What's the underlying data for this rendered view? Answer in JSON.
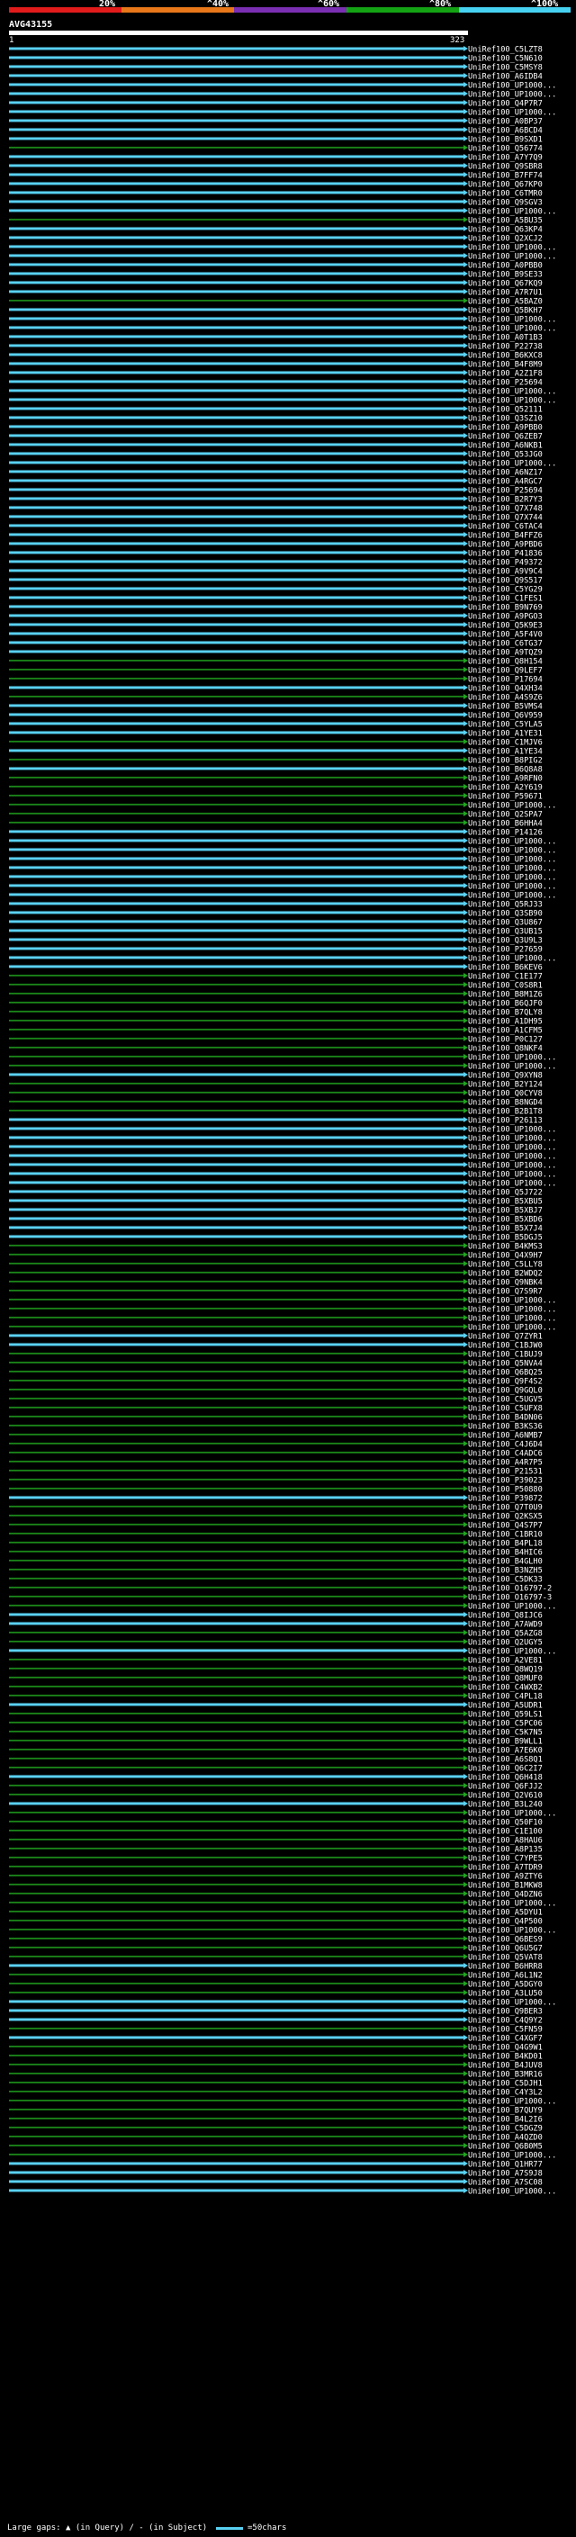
{
  "colors": {
    "red": "#e21b1b",
    "orange": "#e8781a",
    "purple": "#7b2fb3",
    "green": "#14a314",
    "cyan": "#47d2f2",
    "hit_green": "#1fa31f",
    "hit_cyan": "#59d1f2",
    "gap": "#ffffff"
  },
  "scale": {
    "ticks": [
      "20%",
      "^40%",
      "^60%",
      "^80%",
      "^100%"
    ]
  },
  "query": {
    "name": "AVG43155",
    "start": "1",
    "end": "323"
  },
  "footer": {
    "gaps_label": "Large gaps: ▲ (in Query) / - (in Subject)",
    "legend_label": "=50chars"
  },
  "hits": [
    {
      "id": "UniRef100_C5LZT8",
      "color": "cyan"
    },
    {
      "id": "UniRef100_C5N610",
      "color": "cyan"
    },
    {
      "id": "UniRef100_C5MSY8",
      "color": "cyan"
    },
    {
      "id": "UniRef100_A6IDB4",
      "color": "cyan"
    },
    {
      "id": "UniRef100_UP1000...",
      "color": "cyan"
    },
    {
      "id": "UniRef100_UP1000...",
      "color": "cyan"
    },
    {
      "id": "UniRef100_Q4P7R7",
      "color": "cyan"
    },
    {
      "id": "UniRef100_UP1000...",
      "color": "cyan"
    },
    {
      "id": "UniRef100_A0BP37",
      "color": "cyan"
    },
    {
      "id": "UniRef100_A6BCD4",
      "color": "cyan"
    },
    {
      "id": "UniRef100_B9SXD1",
      "color": "cyan"
    },
    {
      "id": "UniRef100_Q56774",
      "color": "green"
    },
    {
      "id": "UniRef100_A7Y7Q9",
      "color": "cyan"
    },
    {
      "id": "UniRef100_Q9SBR8",
      "color": "cyan"
    },
    {
      "id": "UniRef100_B7FF74",
      "color": "cyan"
    },
    {
      "id": "UniRef100_Q67KP0",
      "color": "cyan"
    },
    {
      "id": "UniRef100_C6TMR0",
      "color": "cyan"
    },
    {
      "id": "UniRef100_Q9SGV3",
      "color": "cyan"
    },
    {
      "id": "UniRef100_UP1000...",
      "color": "cyan"
    },
    {
      "id": "UniRef100_A5BU35",
      "color": "green"
    },
    {
      "id": "UniRef100_Q63KP4",
      "color": "cyan"
    },
    {
      "id": "UniRef100_Q2XCJ2",
      "color": "cyan"
    },
    {
      "id": "UniRef100_UP1000...",
      "color": "cyan"
    },
    {
      "id": "UniRef100_UP1000...",
      "color": "cyan"
    },
    {
      "id": "UniRef100_A0PBB0",
      "color": "cyan"
    },
    {
      "id": "UniRef100_B9SE33",
      "color": "cyan"
    },
    {
      "id": "UniRef100_Q67KQ9",
      "color": "cyan"
    },
    {
      "id": "UniRef100_A7R7U1",
      "color": "cyan"
    },
    {
      "id": "UniRef100_A5BAZ0",
      "color": "green"
    },
    {
      "id": "UniRef100_Q5BKH7",
      "color": "cyan"
    },
    {
      "id": "UniRef100_UP1000...",
      "color": "cyan"
    },
    {
      "id": "UniRef100_UP1000...",
      "color": "cyan"
    },
    {
      "id": "UniRef100_A0T1B3",
      "color": "cyan"
    },
    {
      "id": "UniRef100_P22738",
      "color": "cyan"
    },
    {
      "id": "UniRef100_B6KXC8",
      "color": "cyan"
    },
    {
      "id": "UniRef100_B4F8M9",
      "color": "cyan"
    },
    {
      "id": "UniRef100_A2Z1F8",
      "color": "cyan"
    },
    {
      "id": "UniRef100_P25694",
      "color": "cyan"
    },
    {
      "id": "UniRef100_UP1000...",
      "color": "cyan"
    },
    {
      "id": "UniRef100_UP1000...",
      "color": "cyan"
    },
    {
      "id": "UniRef100_Q52111",
      "color": "cyan"
    },
    {
      "id": "UniRef100_Q3SZ10",
      "color": "cyan"
    },
    {
      "id": "UniRef100_A9PBB0",
      "color": "cyan"
    },
    {
      "id": "UniRef100_Q6ZEB7",
      "color": "cyan"
    },
    {
      "id": "UniRef100_A6NKB1",
      "color": "cyan"
    },
    {
      "id": "UniRef100_Q53JG0",
      "color": "cyan"
    },
    {
      "id": "UniRef100_UP1000...",
      "color": "cyan"
    },
    {
      "id": "UniRef100_A6NZ17",
      "color": "cyan"
    },
    {
      "id": "UniRef100_A4RGC7",
      "color": "cyan"
    },
    {
      "id": "UniRef100_P25694",
      "color": "cyan"
    },
    {
      "id": "UniRef100_B2R7Y3",
      "color": "cyan"
    },
    {
      "id": "UniRef100_Q7X748",
      "color": "cyan"
    },
    {
      "id": "UniRef100_Q7X744",
      "color": "cyan"
    },
    {
      "id": "UniRef100_C6TAC4",
      "color": "cyan"
    },
    {
      "id": "UniRef100_B4FFZ6",
      "color": "cyan"
    },
    {
      "id": "UniRef100_A9PBD6",
      "color": "cyan"
    },
    {
      "id": "UniRef100_P41836",
      "color": "cyan"
    },
    {
      "id": "UniRef100_P49372",
      "color": "cyan"
    },
    {
      "id": "UniRef100_A9V9C4",
      "color": "cyan"
    },
    {
      "id": "UniRef100_Q9S517",
      "color": "cyan"
    },
    {
      "id": "UniRef100_C5YG29",
      "color": "cyan"
    },
    {
      "id": "UniRef100_C1FES1",
      "color": "cyan"
    },
    {
      "id": "UniRef100_B9N769",
      "color": "cyan"
    },
    {
      "id": "UniRef100_A9PGO3",
      "color": "cyan"
    },
    {
      "id": "UniRef100_Q5K9E3",
      "color": "cyan"
    },
    {
      "id": "UniRef100_A5F4V0",
      "color": "cyan"
    },
    {
      "id": "UniRef100_C6TG37",
      "color": "cyan"
    },
    {
      "id": "UniRef100_A9TQZ9",
      "color": "cyan"
    },
    {
      "id": "UniRef100_Q8H154",
      "color": "green"
    },
    {
      "id": "UniRef100_Q9LEF7",
      "color": "green"
    },
    {
      "id": "UniRef100_P17694",
      "color": "green"
    },
    {
      "id": "UniRef100_Q4XH34",
      "color": "cyan"
    },
    {
      "id": "UniRef100_A4S9Z6",
      "color": "green"
    },
    {
      "id": "UniRef100_B5VMS4",
      "color": "cyan"
    },
    {
      "id": "UniRef100_Q6V959",
      "color": "cyan"
    },
    {
      "id": "UniRef100_C5YLA5",
      "color": "cyan"
    },
    {
      "id": "UniRef100_A1YE31",
      "color": "cyan"
    },
    {
      "id": "UniRef100_C1MJV6",
      "color": "green"
    },
    {
      "id": "UniRef100_A1YE34",
      "color": "cyan"
    },
    {
      "id": "UniRef100_B8PIG2",
      "color": "green"
    },
    {
      "id": "UniRef100_B6Q8A8",
      "color": "cyan"
    },
    {
      "id": "UniRef100_A9RFN0",
      "color": "green"
    },
    {
      "id": "UniRef100_A2Y619",
      "color": "green"
    },
    {
      "id": "UniRef100_P59671",
      "color": "green"
    },
    {
      "id": "UniRef100_UP1000...",
      "color": "green"
    },
    {
      "id": "UniRef100_Q2SPA7",
      "color": "green"
    },
    {
      "id": "UniRef100_B6HHA4",
      "color": "green"
    },
    {
      "id": "UniRef100_P14126",
      "color": "cyan"
    },
    {
      "id": "UniRef100_UP1000...",
      "color": "cyan"
    },
    {
      "id": "UniRef100_UP1000...",
      "color": "cyan"
    },
    {
      "id": "UniRef100_UP1000...",
      "color": "cyan"
    },
    {
      "id": "UniRef100_UP1000...",
      "color": "cyan"
    },
    {
      "id": "UniRef100_UP1000...",
      "color": "cyan"
    },
    {
      "id": "UniRef100_UP1000...",
      "color": "cyan"
    },
    {
      "id": "UniRef100_UP1000...",
      "color": "cyan"
    },
    {
      "id": "UniRef100_Q5RJ33",
      "color": "cyan"
    },
    {
      "id": "UniRef100_Q3SB90",
      "color": "cyan"
    },
    {
      "id": "UniRef100_Q3U867",
      "color": "cyan"
    },
    {
      "id": "UniRef100_Q3UB15",
      "color": "cyan"
    },
    {
      "id": "UniRef100_Q3U9L3",
      "color": "cyan"
    },
    {
      "id": "UniRef100_P27659",
      "color": "cyan"
    },
    {
      "id": "UniRef100_UP1000...",
      "color": "cyan"
    },
    {
      "id": "UniRef100_B6KEV6",
      "color": "cyan"
    },
    {
      "id": "UniRef100_C1E177",
      "color": "green"
    },
    {
      "id": "UniRef100_C0S8R1",
      "color": "green"
    },
    {
      "id": "UniRef100_B8M1Z6",
      "color": "green"
    },
    {
      "id": "UniRef100_B6QJF0",
      "color": "green"
    },
    {
      "id": "UniRef100_B7QLY8",
      "color": "green"
    },
    {
      "id": "UniRef100_A1DH95",
      "color": "green"
    },
    {
      "id": "UniRef100_A1CFM5",
      "color": "green"
    },
    {
      "id": "UniRef100_P0C127",
      "color": "green"
    },
    {
      "id": "UniRef100_Q8NKF4",
      "color": "green"
    },
    {
      "id": "UniRef100_UP1000...",
      "color": "green"
    },
    {
      "id": "UniRef100_UP1000...",
      "color": "green"
    },
    {
      "id": "UniRef100_Q9XYN8",
      "color": "cyan"
    },
    {
      "id": "UniRef100_B2Y124",
      "color": "green"
    },
    {
      "id": "UniRef100_Q0CYV8",
      "color": "green"
    },
    {
      "id": "UniRef100_B8NGD4",
      "color": "green"
    },
    {
      "id": "UniRef100_B2B1T8",
      "color": "green"
    },
    {
      "id": "UniRef100_P26113",
      "color": "cyan"
    },
    {
      "id": "UniRef100_UP1000...",
      "color": "cyan"
    },
    {
      "id": "UniRef100_UP1000...",
      "color": "cyan"
    },
    {
      "id": "UniRef100_UP1000...",
      "color": "cyan"
    },
    {
      "id": "UniRef100_UP1000...",
      "color": "cyan"
    },
    {
      "id": "UniRef100_UP1000...",
      "color": "cyan"
    },
    {
      "id": "UniRef100_UP1000...",
      "color": "cyan"
    },
    {
      "id": "UniRef100_UP1000...",
      "color": "cyan"
    },
    {
      "id": "UniRef100_Q5J722",
      "color": "cyan"
    },
    {
      "id": "UniRef100_B5XBU5",
      "color": "cyan"
    },
    {
      "id": "UniRef100_B5XBJ7",
      "color": "cyan"
    },
    {
      "id": "UniRef100_B5XBD6",
      "color": "cyan"
    },
    {
      "id": "UniRef100_B5X7J4",
      "color": "cyan"
    },
    {
      "id": "UniRef100_B5DGJ5",
      "color": "cyan"
    },
    {
      "id": "UniRef100_B4KMS3",
      "color": "green"
    },
    {
      "id": "UniRef100_Q4X9H7",
      "color": "green"
    },
    {
      "id": "UniRef100_C5LLY8",
      "color": "green"
    },
    {
      "id": "UniRef100_B2WDQ2",
      "color": "green"
    },
    {
      "id": "UniRef100_Q9NBK4",
      "color": "green"
    },
    {
      "id": "UniRef100_Q7S9R7",
      "color": "green"
    },
    {
      "id": "UniRef100_UP1000...",
      "color": "green"
    },
    {
      "id": "UniRef100_UP1000...",
      "color": "green"
    },
    {
      "id": "UniRef100_UP1000...",
      "color": "green"
    },
    {
      "id": "UniRef100_UP1000...",
      "color": "green"
    },
    {
      "id": "UniRef100_Q7ZYR1",
      "color": "cyan"
    },
    {
      "id": "UniRef100_C1BJW0",
      "color": "cyan"
    },
    {
      "id": "UniRef100_C1BUJ9",
      "color": "green"
    },
    {
      "id": "UniRef100_Q5NVA4",
      "color": "green"
    },
    {
      "id": "UniRef100_Q6BQ25",
      "color": "green"
    },
    {
      "id": "UniRef100_Q9F4S2",
      "color": "green"
    },
    {
      "id": "UniRef100_Q9GQL0",
      "color": "green"
    },
    {
      "id": "UniRef100_C5UGV5",
      "color": "green"
    },
    {
      "id": "UniRef100_C5UFX8",
      "color": "green"
    },
    {
      "id": "UniRef100_B4DN06",
      "color": "green"
    },
    {
      "id": "UniRef100_B3KS36",
      "color": "green"
    },
    {
      "id": "UniRef100_A6NMB7",
      "color": "green"
    },
    {
      "id": "UniRef100_C4J6D4",
      "color": "green"
    },
    {
      "id": "UniRef100_C4ADC6",
      "color": "green"
    },
    {
      "id": "UniRef100_A4R7P5",
      "color": "green"
    },
    {
      "id": "UniRef100_P21531",
      "color": "green"
    },
    {
      "id": "UniRef100_P39023",
      "color": "green"
    },
    {
      "id": "UniRef100_P50880",
      "color": "green"
    },
    {
      "id": "UniRef100_P39872",
      "color": "cyan"
    },
    {
      "id": "UniRef100_Q7T0U9",
      "color": "green"
    },
    {
      "id": "UniRef100_Q2KSX5",
      "color": "green"
    },
    {
      "id": "UniRef100_Q4S7P7",
      "color": "green"
    },
    {
      "id": "UniRef100_C1BR10",
      "color": "green"
    },
    {
      "id": "UniRef100_B4PL18",
      "color": "green"
    },
    {
      "id": "UniRef100_B4HIC6",
      "color": "green"
    },
    {
      "id": "UniRef100_B4GLH0",
      "color": "green"
    },
    {
      "id": "UniRef100_B3NZH5",
      "color": "green"
    },
    {
      "id": "UniRef100_C5DK33",
      "color": "green"
    },
    {
      "id": "UniRef100_O16797-2",
      "color": "green"
    },
    {
      "id": "UniRef100_O16797-3",
      "color": "green"
    },
    {
      "id": "UniRef100_UP1000...",
      "color": "green"
    },
    {
      "id": "UniRef100_Q8IJC6",
      "color": "cyan"
    },
    {
      "id": "UniRef100_A7AWD9",
      "color": "cyan"
    },
    {
      "id": "UniRef100_Q5AZG8",
      "color": "green"
    },
    {
      "id": "UniRef100_Q2UGY5",
      "color": "green"
    },
    {
      "id": "UniRef100_UP1000...",
      "color": "cyan"
    },
    {
      "id": "UniRef100_A2VE81",
      "color": "green"
    },
    {
      "id": "UniRef100_Q8WQ19",
      "color": "green"
    },
    {
      "id": "UniRef100_Q8MUF0",
      "color": "green"
    },
    {
      "id": "UniRef100_C4WXB2",
      "color": "green"
    },
    {
      "id": "UniRef100_C4PL18",
      "color": "green"
    },
    {
      "id": "UniRef100_A5UDR1",
      "color": "cyan"
    },
    {
      "id": "UniRef100_Q59LS1",
      "color": "green"
    },
    {
      "id": "UniRef100_C5PC06",
      "color": "green"
    },
    {
      "id": "UniRef100_C5K7N5",
      "color": "green"
    },
    {
      "id": "UniRef100_B9WLL1",
      "color": "green"
    },
    {
      "id": "UniRef100_A7E6K0",
      "color": "green"
    },
    {
      "id": "UniRef100_A6S8Q1",
      "color": "green"
    },
    {
      "id": "UniRef100_Q6C2I7",
      "color": "green"
    },
    {
      "id": "UniRef100_Q6H418",
      "color": "cyan"
    },
    {
      "id": "UniRef100_Q6FJJ2",
      "color": "green"
    },
    {
      "id": "UniRef100_Q2V610",
      "color": "green"
    },
    {
      "id": "UniRef100_B3L240",
      "color": "cyan"
    },
    {
      "id": "UniRef100_UP1000...",
      "color": "green"
    },
    {
      "id": "UniRef100_Q50F10",
      "color": "green"
    },
    {
      "id": "UniRef100_C1E100",
      "color": "green"
    },
    {
      "id": "UniRef100_A8HAU6",
      "color": "green"
    },
    {
      "id": "UniRef100_A8P135",
      "color": "green"
    },
    {
      "id": "UniRef100_C7YPE5",
      "color": "green"
    },
    {
      "id": "UniRef100_A7TDR9",
      "color": "green"
    },
    {
      "id": "UniRef100_A9ZTY6",
      "color": "green"
    },
    {
      "id": "UniRef100_B1MKW8",
      "color": "green"
    },
    {
      "id": "UniRef100_Q4DZN6",
      "color": "green"
    },
    {
      "id": "UniRef100_UP1000...",
      "color": "green"
    },
    {
      "id": "UniRef100_A5DYU1",
      "color": "green"
    },
    {
      "id": "UniRef100_Q4P500",
      "color": "green"
    },
    {
      "id": "UniRef100_UP1000...",
      "color": "green"
    },
    {
      "id": "UniRef100_Q6BES9",
      "color": "green"
    },
    {
      "id": "UniRef100_Q6U5G7",
      "color": "green"
    },
    {
      "id": "UniRef100_Q5VAT8",
      "color": "green"
    },
    {
      "id": "UniRef100_B6HRR8",
      "color": "cyan"
    },
    {
      "id": "UniRef100_A6L1N2",
      "color": "green"
    },
    {
      "id": "UniRef100_A5DGY0",
      "color": "green"
    },
    {
      "id": "UniRef100_A3LU50",
      "color": "green"
    },
    {
      "id": "UniRef100_UP1000...",
      "color": "cyan"
    },
    {
      "id": "UniRef100_Q9BER3",
      "color": "cyan"
    },
    {
      "id": "UniRef100_C4Q9Y2",
      "color": "cyan"
    },
    {
      "id": "UniRef100_C5FN59",
      "color": "green"
    },
    {
      "id": "UniRef100_C4XGF7",
      "color": "cyan"
    },
    {
      "id": "UniRef100_Q4G9W1",
      "color": "green"
    },
    {
      "id": "UniRef100_B4KD01",
      "color": "green"
    },
    {
      "id": "UniRef100_B4JUV8",
      "color": "green"
    },
    {
      "id": "UniRef100_B3MR16",
      "color": "green"
    },
    {
      "id": "UniRef100_C5DJH1",
      "color": "green"
    },
    {
      "id": "UniRef100_C4Y3L2",
      "color": "green"
    },
    {
      "id": "UniRef100_UP1000...",
      "color": "green"
    },
    {
      "id": "UniRef100_B7QUY9",
      "color": "green"
    },
    {
      "id": "UniRef100_B4L2I6",
      "color": "green"
    },
    {
      "id": "UniRef100_C5DGZ9",
      "color": "green"
    },
    {
      "id": "UniRef100_A4QZD0",
      "color": "green"
    },
    {
      "id": "UniRef100_Q6B0M5",
      "color": "green"
    },
    {
      "id": "UniRef100_UP1000...",
      "color": "green"
    },
    {
      "id": "UniRef100_Q1HR77",
      "color": "cyan"
    },
    {
      "id": "UniRef100_A7S9J8",
      "color": "cyan"
    },
    {
      "id": "UniRef100_A7SC08",
      "color": "cyan"
    },
    {
      "id": "UniRef100_UP1000...",
      "color": "cyan"
    }
  ]
}
